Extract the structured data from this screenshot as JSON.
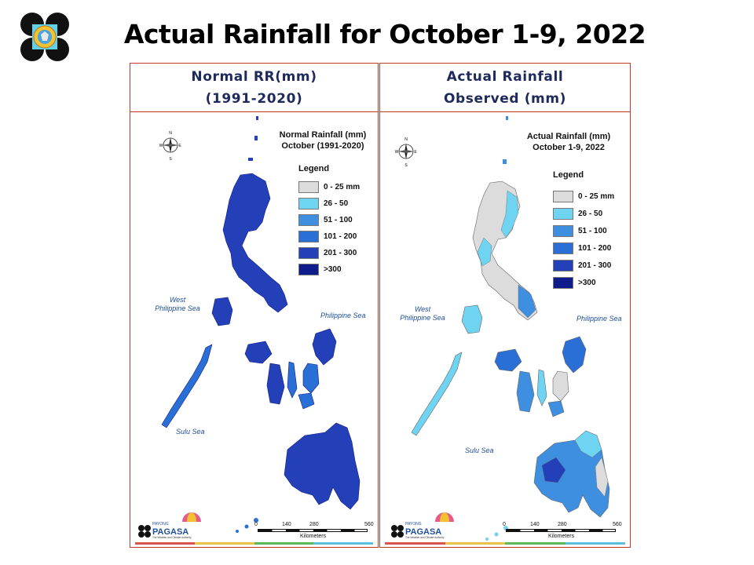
{
  "slide": {
    "title": "Actual Rainfall for October 1-9, 2022"
  },
  "panels": [
    {
      "id": "normal",
      "header_line1": "Normal RR(mm)",
      "header_line2": "(1991-2020)",
      "map_title_line1": "Normal Rainfall (mm)",
      "map_title_line2": "October (1991-2020)"
    },
    {
      "id": "actual",
      "header_line1": "Actual Rainfall",
      "header_line2": "Observed  (mm)",
      "map_title_line1": "Actual Rainfall (mm)",
      "map_title_line2": "October 1-9, 2022"
    }
  ],
  "legend": {
    "title": "Legend",
    "classes": [
      {
        "label": "0 - 25 mm",
        "color": "#dcdcdc"
      },
      {
        "label": "26 - 50",
        "color": "#6fd3f2"
      },
      {
        "label": "51 - 100",
        "color": "#3e8fe0"
      },
      {
        "label": "101 - 200",
        "color": "#2a6fd6"
      },
      {
        "label": "201 - 300",
        "color": "#2440b8"
      },
      {
        "label": ">300",
        "color": "#0f1c8c"
      }
    ]
  },
  "labels": {
    "west_sea_line1": "West",
    "west_sea_line2": "Philippine Sea",
    "east_sea": "Philippine Sea",
    "sulu_sea": "Sulu Sea",
    "compass_n": "N",
    "compass_s": "S",
    "compass_w": "W",
    "compass_e": "E"
  },
  "scale_bar": {
    "ticks": [
      "0",
      "140",
      "280",
      "560"
    ],
    "unit": "Kilometers"
  },
  "branding": {
    "dost": "DOST",
    "payong": "PAYONG",
    "pagasa": "PAGASA",
    "tagline": "The Weather and Climate Authority"
  },
  "colors": {
    "panel_border": "#c0392b",
    "header_text": "#1f2a5c",
    "sea_label": "#1f4e9a",
    "footer_strip": [
      "#d9534f",
      "#e8c34a",
      "#5cb85c",
      "#5bc0de"
    ]
  }
}
